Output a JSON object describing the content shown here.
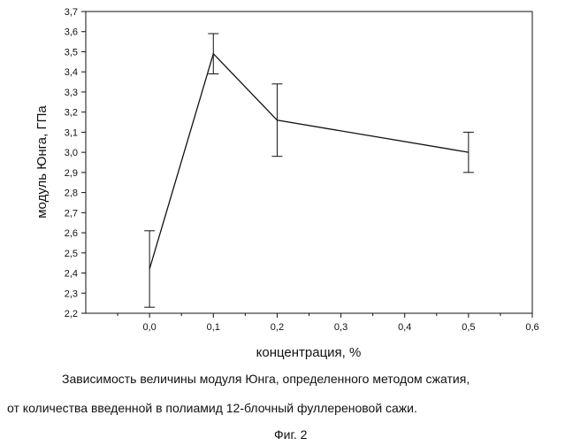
{
  "chart_data": {
    "type": "line",
    "xlabel": "концентрация, %",
    "ylabel": "модуль Юнга, ГПа",
    "xlim": [
      -0.1,
      0.6
    ],
    "ylim": [
      2.2,
      3.7
    ],
    "x_ticks": [
      "0,0",
      "0,1",
      "0,2",
      "0,3",
      "0,4",
      "0,5",
      "0,6"
    ],
    "x_tick_values": [
      0.0,
      0.1,
      0.2,
      0.3,
      0.4,
      0.5,
      0.6
    ],
    "y_ticks": [
      "2,2",
      "2,3",
      "2,4",
      "2,5",
      "2,6",
      "2,7",
      "2,8",
      "2,9",
      "3,0",
      "3,1",
      "3,2",
      "3,3",
      "3,4",
      "3,5",
      "3,6",
      "3,7"
    ],
    "y_tick_values": [
      2.2,
      2.3,
      2.4,
      2.5,
      2.6,
      2.7,
      2.8,
      2.9,
      3.0,
      3.1,
      3.2,
      3.3,
      3.4,
      3.5,
      3.6,
      3.7
    ],
    "grid": false,
    "series": [
      {
        "x": [
          0.0,
          0.1,
          0.2,
          0.5
        ],
        "y": [
          2.42,
          3.49,
          3.16,
          3.0
        ],
        "err_low": [
          2.23,
          3.39,
          2.98,
          2.9
        ],
        "err_high": [
          2.61,
          3.59,
          3.34,
          3.1
        ],
        "color": "#111111"
      }
    ]
  },
  "caption": {
    "line1": "Зависимость величины модуля Юнга, определенного методом сжатия,",
    "line2": "от количества введенной в полиамид 12-блочный фуллереновой сажи.",
    "figure_label": "Фиг. 2"
  }
}
